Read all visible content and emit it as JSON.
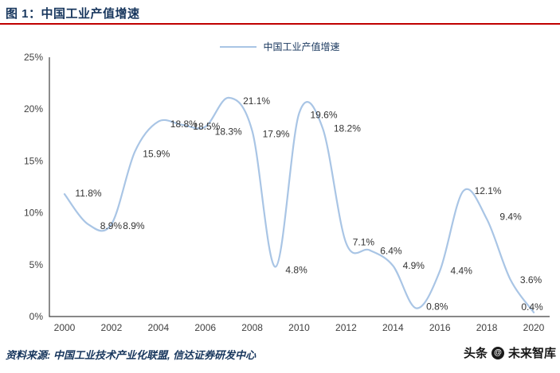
{
  "figure": {
    "title": "图 1：中国工业产值增速",
    "source": "资料来源: 中国工业技术产业化联盟, 信达证券研发中心",
    "watermark": {
      "prefix": "头条",
      "icon": "@",
      "suffix": "未来智库"
    }
  },
  "chart_data": {
    "type": "line",
    "title": "中国工业产值增速",
    "legend": [
      "中国工业产值增速"
    ],
    "legend_position": "top-center",
    "grid": false,
    "smooth": true,
    "x": [
      2000,
      2001,
      2002,
      2003,
      2004,
      2005,
      2006,
      2007,
      2008,
      2009,
      2010,
      2011,
      2012,
      2013,
      2014,
      2015,
      2016,
      2017,
      2018,
      2019,
      2020
    ],
    "series": [
      {
        "name": "中国工业产值增速",
        "values": [
          11.8,
          8.9,
          8.9,
          15.9,
          18.8,
          18.5,
          18.3,
          21.1,
          17.9,
          4.8,
          19.6,
          18.2,
          7.1,
          6.4,
          4.9,
          0.8,
          4.4,
          12.1,
          9.4,
          3.6,
          0.4
        ]
      }
    ],
    "data_labels": [
      "11.8%",
      "8.9%",
      "8.9%",
      "15.9%",
      "18.8%",
      "18.5%",
      "18.3%",
      "21.1%",
      "17.9%",
      "4.8%",
      "19.6%",
      "18.2%",
      "7.1%",
      "6.4%",
      "4.9%",
      "0.8%",
      "4.4%",
      "12.1%",
      "9.4%",
      "3.6%",
      "0.4%"
    ],
    "ylim": [
      0,
      25
    ],
    "ytick_labels": [
      "0%",
      "5%",
      "10%",
      "15%",
      "20%",
      "25%"
    ],
    "xtick_labels": [
      "2000",
      "2002",
      "2004",
      "2006",
      "2008",
      "2010",
      "2012",
      "2014",
      "2016",
      "2018",
      "2020"
    ],
    "xlabel": "",
    "ylabel": "",
    "line_color": "#a9c5e5",
    "axis_color": "#404040",
    "tick_color": "#404040",
    "label_color": "#333333"
  },
  "colors": {
    "title_navy": "#17365d",
    "rule_red": "#c00000"
  }
}
